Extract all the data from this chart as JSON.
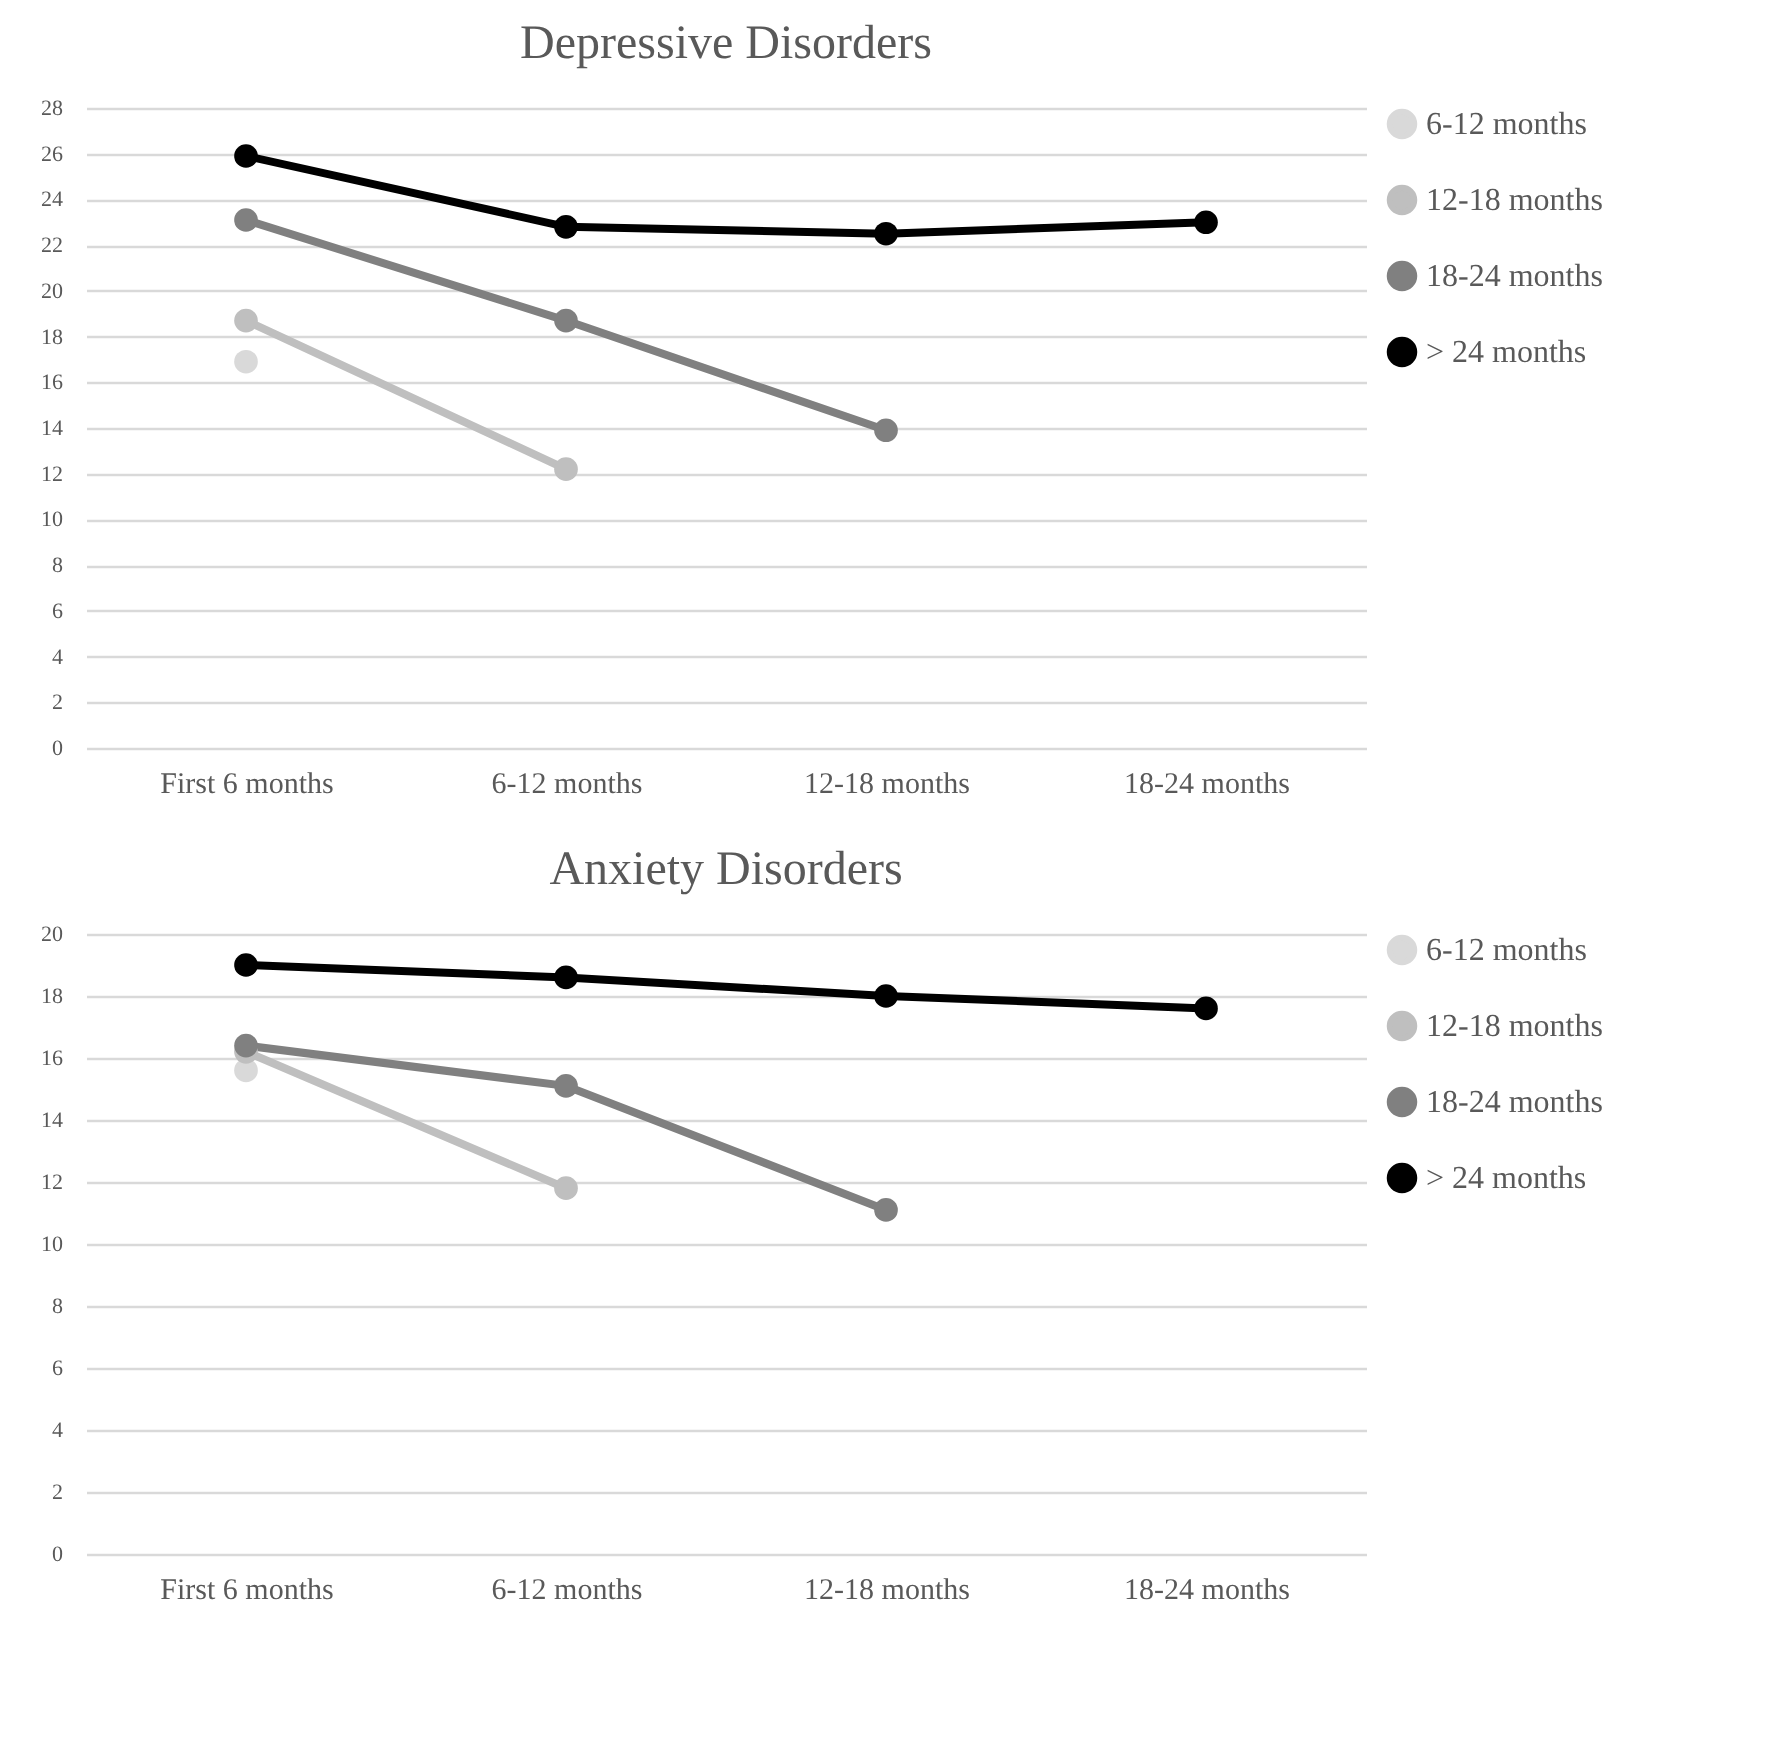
{
  "chart_data": [
    {
      "type": "line",
      "title": "Depressive Disorders",
      "categories": [
        "First 6 months",
        "6-12 months",
        "12-18 months",
        "18-24 months"
      ],
      "series": [
        {
          "name": "6-12 months",
          "color": "#d9d9d9",
          "values": [
            16.9,
            null,
            null,
            null
          ]
        },
        {
          "name": "12-18 months",
          "color": "#bfbfbf",
          "values": [
            18.7,
            12.2,
            null,
            null
          ]
        },
        {
          "name": "18-24 months",
          "color": "#808080",
          "values": [
            23.1,
            18.7,
            13.9,
            null
          ]
        },
        {
          "name": "> 24 months",
          "color": "#000000",
          "values": [
            25.9,
            22.8,
            22.5,
            23.0
          ]
        }
      ],
      "ylim": [
        0,
        28
      ],
      "yticks": [
        0,
        2,
        4,
        6,
        8,
        10,
        12,
        14,
        16,
        18,
        20,
        22,
        24,
        26,
        28
      ],
      "grid": "y",
      "legend": "right",
      "marker": "circle"
    },
    {
      "type": "line",
      "title": "Anxiety Disorders",
      "categories": [
        "First 6 months",
        "6-12 months",
        "12-18 months",
        "18-24 months"
      ],
      "series": [
        {
          "name": "6-12 months",
          "color": "#d9d9d9",
          "values": [
            15.6,
            null,
            null,
            null
          ]
        },
        {
          "name": "12-18 months",
          "color": "#bfbfbf",
          "values": [
            16.2,
            11.8,
            null,
            null
          ]
        },
        {
          "name": "18-24 months",
          "color": "#808080",
          "values": [
            16.4,
            15.1,
            11.1,
            null
          ]
        },
        {
          "name": "> 24 months",
          "color": "#000000",
          "values": [
            19.0,
            18.6,
            18.0,
            17.6
          ]
        }
      ],
      "ylim": [
        0,
        20
      ],
      "yticks": [
        0,
        2,
        4,
        6,
        8,
        10,
        12,
        14,
        16,
        18,
        20
      ],
      "grid": "y",
      "legend": "right",
      "marker": "circle"
    }
  ]
}
